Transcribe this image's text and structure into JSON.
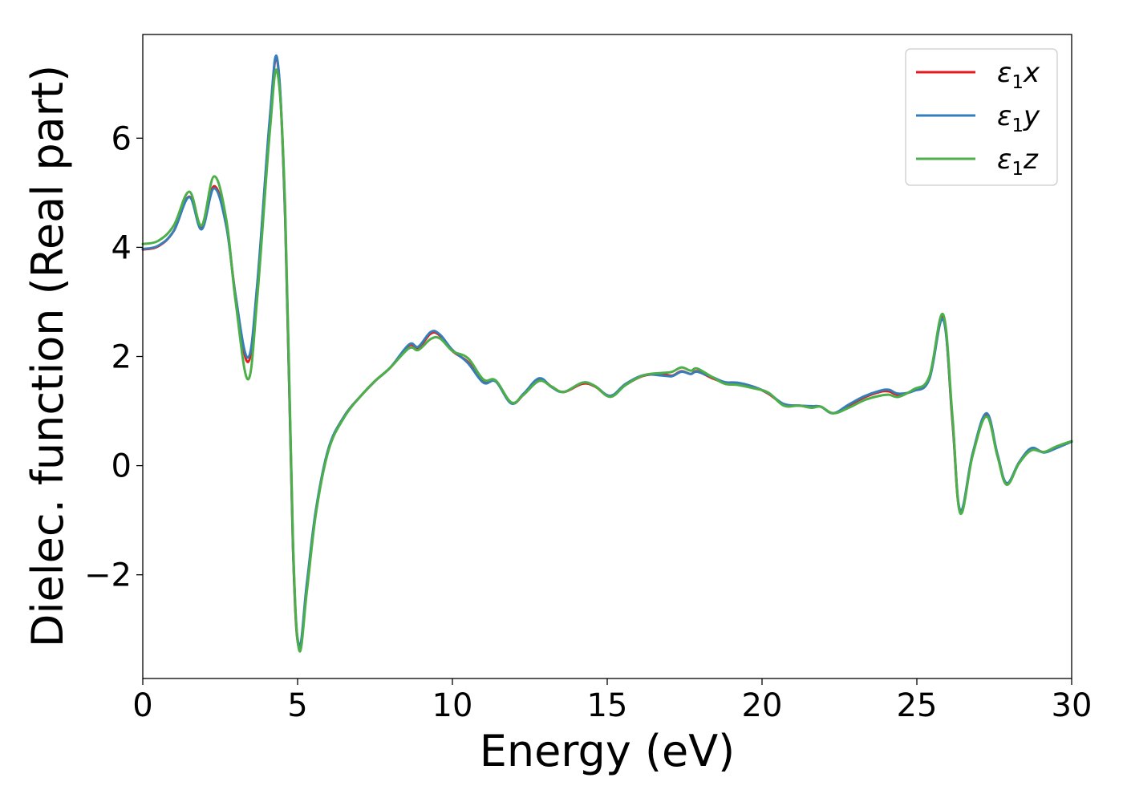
{
  "chart_data": {
    "type": "line",
    "xlabel": "Energy (eV)",
    "ylabel": "Dielec. function (Real part)",
    "xlim": [
      0,
      30
    ],
    "ylim": [
      -3.9,
      7.9
    ],
    "xticks": [
      0,
      5,
      10,
      15,
      20,
      25,
      30
    ],
    "xtick_labels": [
      "0",
      "5",
      "10",
      "15",
      "20",
      "25",
      "30"
    ],
    "yticks": [
      -2,
      0,
      2,
      4,
      6
    ],
    "ytick_labels": [
      "−2",
      "0",
      "2",
      "4",
      "6"
    ],
    "grid": false,
    "legend_position": "top-right",
    "series": [
      {
        "name": "ε1x",
        "legend_symbol": "ε",
        "legend_sub": "1",
        "legend_var": "x",
        "color": "#e41a1c",
        "points": [
          [
            0,
            3.96
          ],
          [
            0.5,
            4.02
          ],
          [
            1.0,
            4.3
          ],
          [
            1.5,
            4.93
          ],
          [
            1.9,
            4.35
          ],
          [
            2.3,
            5.12
          ],
          [
            2.7,
            4.4
          ],
          [
            3.0,
            3.1
          ],
          [
            3.4,
            1.9
          ],
          [
            3.7,
            3.3
          ],
          [
            4.1,
            6.3
          ],
          [
            4.35,
            7.4
          ],
          [
            4.6,
            4.5
          ],
          [
            4.85,
            -1.5
          ],
          [
            5.05,
            -3.35
          ],
          [
            5.3,
            -2.2
          ],
          [
            5.6,
            -0.8
          ],
          [
            6.0,
            0.3
          ],
          [
            6.5,
            0.9
          ],
          [
            7.0,
            1.25
          ],
          [
            7.5,
            1.55
          ],
          [
            8.0,
            1.8
          ],
          [
            8.6,
            2.2
          ],
          [
            8.9,
            2.15
          ],
          [
            9.3,
            2.42
          ],
          [
            9.6,
            2.38
          ],
          [
            10.0,
            2.1
          ],
          [
            10.5,
            1.9
          ],
          [
            11.0,
            1.55
          ],
          [
            11.4,
            1.55
          ],
          [
            11.9,
            1.15
          ],
          [
            12.3,
            1.3
          ],
          [
            12.8,
            1.58
          ],
          [
            13.2,
            1.45
          ],
          [
            13.6,
            1.35
          ],
          [
            14.2,
            1.5
          ],
          [
            14.6,
            1.45
          ],
          [
            15.1,
            1.27
          ],
          [
            15.6,
            1.48
          ],
          [
            16.2,
            1.65
          ],
          [
            16.8,
            1.67
          ],
          [
            17.1,
            1.65
          ],
          [
            17.4,
            1.73
          ],
          [
            17.7,
            1.68
          ],
          [
            17.9,
            1.73
          ],
          [
            18.4,
            1.6
          ],
          [
            18.8,
            1.52
          ],
          [
            19.2,
            1.5
          ],
          [
            19.7,
            1.45
          ],
          [
            20.2,
            1.32
          ],
          [
            20.7,
            1.12
          ],
          [
            21.2,
            1.1
          ],
          [
            21.6,
            1.08
          ],
          [
            21.9,
            1.08
          ],
          [
            22.3,
            0.96
          ],
          [
            22.8,
            1.1
          ],
          [
            23.3,
            1.25
          ],
          [
            23.8,
            1.35
          ],
          [
            24.1,
            1.36
          ],
          [
            24.4,
            1.3
          ],
          [
            24.9,
            1.38
          ],
          [
            25.4,
            1.6
          ],
          [
            25.85,
            2.72
          ],
          [
            26.15,
            0.8
          ],
          [
            26.4,
            -0.85
          ],
          [
            26.8,
            0.2
          ],
          [
            27.25,
            0.94
          ],
          [
            27.6,
            0.2
          ],
          [
            27.9,
            -0.33
          ],
          [
            28.3,
            0.05
          ],
          [
            28.7,
            0.3
          ],
          [
            29.1,
            0.25
          ],
          [
            29.5,
            0.33
          ],
          [
            30,
            0.44
          ]
        ]
      },
      {
        "name": "ε1y",
        "legend_symbol": "ε",
        "legend_sub": "1",
        "legend_var": "y",
        "color": "#377eb8",
        "points": [
          [
            0,
            3.97
          ],
          [
            0.5,
            4.03
          ],
          [
            1.0,
            4.3
          ],
          [
            1.5,
            4.92
          ],
          [
            1.9,
            4.33
          ],
          [
            2.3,
            5.08
          ],
          [
            2.7,
            4.38
          ],
          [
            3.0,
            3.1
          ],
          [
            3.4,
            1.98
          ],
          [
            3.7,
            3.35
          ],
          [
            4.1,
            6.35
          ],
          [
            4.35,
            7.43
          ],
          [
            4.6,
            4.55
          ],
          [
            4.85,
            -1.45
          ],
          [
            5.05,
            -3.3
          ],
          [
            5.3,
            -2.15
          ],
          [
            5.6,
            -0.78
          ],
          [
            6.0,
            0.32
          ],
          [
            6.5,
            0.9
          ],
          [
            7.0,
            1.25
          ],
          [
            7.5,
            1.55
          ],
          [
            8.0,
            1.8
          ],
          [
            8.6,
            2.22
          ],
          [
            8.9,
            2.18
          ],
          [
            9.3,
            2.45
          ],
          [
            9.6,
            2.4
          ],
          [
            10.0,
            2.12
          ],
          [
            10.5,
            1.88
          ],
          [
            11.0,
            1.52
          ],
          [
            11.4,
            1.54
          ],
          [
            11.9,
            1.14
          ],
          [
            12.3,
            1.32
          ],
          [
            12.8,
            1.6
          ],
          [
            13.2,
            1.44
          ],
          [
            13.6,
            1.35
          ],
          [
            14.2,
            1.52
          ],
          [
            14.6,
            1.46
          ],
          [
            15.1,
            1.28
          ],
          [
            15.6,
            1.5
          ],
          [
            16.2,
            1.66
          ],
          [
            16.8,
            1.65
          ],
          [
            17.1,
            1.64
          ],
          [
            17.4,
            1.72
          ],
          [
            17.7,
            1.68
          ],
          [
            17.9,
            1.72
          ],
          [
            18.4,
            1.62
          ],
          [
            18.8,
            1.53
          ],
          [
            19.2,
            1.52
          ],
          [
            19.7,
            1.45
          ],
          [
            20.2,
            1.33
          ],
          [
            20.7,
            1.13
          ],
          [
            21.2,
            1.1
          ],
          [
            21.6,
            1.09
          ],
          [
            21.9,
            1.08
          ],
          [
            22.3,
            0.96
          ],
          [
            22.8,
            1.12
          ],
          [
            23.3,
            1.27
          ],
          [
            23.8,
            1.37
          ],
          [
            24.1,
            1.39
          ],
          [
            24.4,
            1.32
          ],
          [
            24.9,
            1.37
          ],
          [
            25.4,
            1.58
          ],
          [
            25.85,
            2.68
          ],
          [
            26.15,
            0.85
          ],
          [
            26.4,
            -0.82
          ],
          [
            26.8,
            0.22
          ],
          [
            27.25,
            0.96
          ],
          [
            27.6,
            0.22
          ],
          [
            27.9,
            -0.32
          ],
          [
            28.3,
            0.06
          ],
          [
            28.7,
            0.32
          ],
          [
            29.1,
            0.24
          ],
          [
            29.5,
            0.32
          ],
          [
            30,
            0.44
          ]
        ]
      },
      {
        "name": "ε1z",
        "legend_symbol": "ε",
        "legend_sub": "1",
        "legend_var": "z",
        "color": "#4daf4a",
        "points": [
          [
            0,
            4.06
          ],
          [
            0.5,
            4.12
          ],
          [
            1.0,
            4.4
          ],
          [
            1.5,
            5.02
          ],
          [
            1.9,
            4.4
          ],
          [
            2.3,
            5.3
          ],
          [
            2.7,
            4.5
          ],
          [
            3.0,
            3.0
          ],
          [
            3.4,
            1.58
          ],
          [
            3.7,
            3.1
          ],
          [
            4.1,
            6.1
          ],
          [
            4.35,
            7.2
          ],
          [
            4.6,
            4.7
          ],
          [
            4.85,
            -1.35
          ],
          [
            5.05,
            -3.38
          ],
          [
            5.3,
            -2.3
          ],
          [
            5.6,
            -0.85
          ],
          [
            6.0,
            0.28
          ],
          [
            6.5,
            0.88
          ],
          [
            7.0,
            1.25
          ],
          [
            7.5,
            1.55
          ],
          [
            8.0,
            1.8
          ],
          [
            8.6,
            2.15
          ],
          [
            8.9,
            2.12
          ],
          [
            9.3,
            2.32
          ],
          [
            9.6,
            2.33
          ],
          [
            10.0,
            2.1
          ],
          [
            10.5,
            1.97
          ],
          [
            11.0,
            1.58
          ],
          [
            11.4,
            1.56
          ],
          [
            11.9,
            1.16
          ],
          [
            12.3,
            1.3
          ],
          [
            12.8,
            1.55
          ],
          [
            13.2,
            1.45
          ],
          [
            13.6,
            1.35
          ],
          [
            14.2,
            1.52
          ],
          [
            14.6,
            1.46
          ],
          [
            15.1,
            1.26
          ],
          [
            15.6,
            1.48
          ],
          [
            16.2,
            1.66
          ],
          [
            16.8,
            1.7
          ],
          [
            17.1,
            1.72
          ],
          [
            17.4,
            1.8
          ],
          [
            17.7,
            1.74
          ],
          [
            17.9,
            1.78
          ],
          [
            18.4,
            1.62
          ],
          [
            18.8,
            1.5
          ],
          [
            19.2,
            1.48
          ],
          [
            19.7,
            1.42
          ],
          [
            20.2,
            1.34
          ],
          [
            20.7,
            1.1
          ],
          [
            21.2,
            1.1
          ],
          [
            21.6,
            1.06
          ],
          [
            21.9,
            1.08
          ],
          [
            22.3,
            0.96
          ],
          [
            22.8,
            1.06
          ],
          [
            23.3,
            1.2
          ],
          [
            23.8,
            1.28
          ],
          [
            24.1,
            1.3
          ],
          [
            24.4,
            1.26
          ],
          [
            24.9,
            1.4
          ],
          [
            25.4,
            1.63
          ],
          [
            25.85,
            2.77
          ],
          [
            26.15,
            0.9
          ],
          [
            26.4,
            -0.87
          ],
          [
            26.8,
            0.18
          ],
          [
            27.25,
            0.9
          ],
          [
            27.6,
            0.18
          ],
          [
            27.9,
            -0.35
          ],
          [
            28.3,
            0.04
          ],
          [
            28.7,
            0.28
          ],
          [
            29.1,
            0.25
          ],
          [
            29.5,
            0.35
          ],
          [
            30,
            0.45
          ]
        ]
      }
    ]
  }
}
